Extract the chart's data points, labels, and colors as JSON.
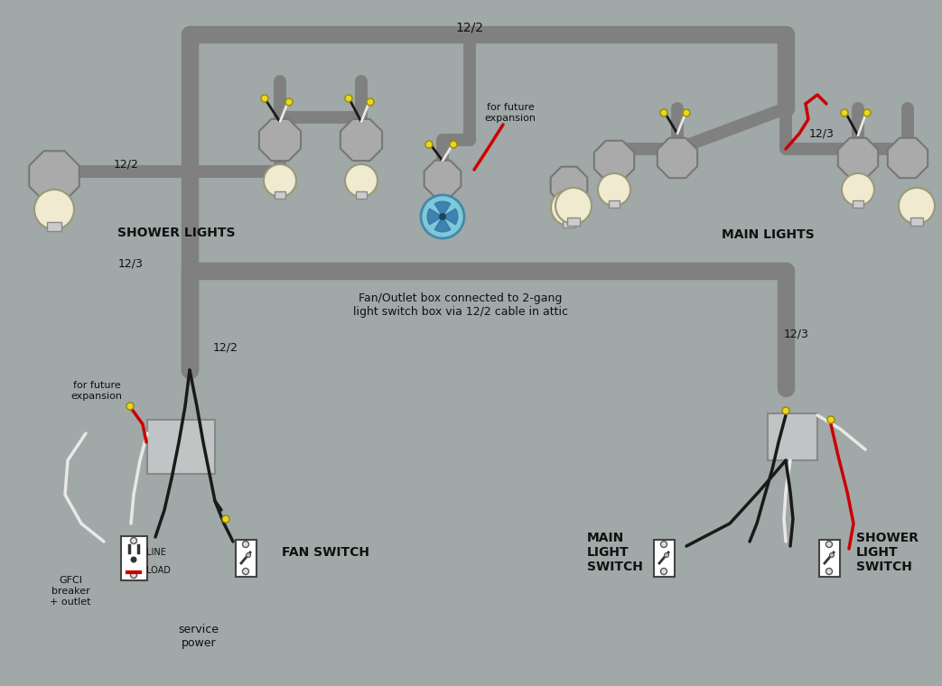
{
  "bg_color": "#a0a8a8",
  "wire_colors": {
    "black": "#1a1a1a",
    "white": "#e8e8e8",
    "red": "#cc0000",
    "gray_conduit": "#808080",
    "yellow_tip": "#e8d820"
  },
  "labels": {
    "cable_top_122": "12/2",
    "shower_lights": "SHOWER LIGHTS",
    "main_lights": "MAIN LIGHTS",
    "fan_switch": "FAN SWITCH",
    "main_light_switch": "MAIN\nLIGHT\nSWITCH",
    "shower_light_switch": "SHOWER\nLIGHT\nSWITCH",
    "gfci": "GFCI\nbreaker\n+ outlet",
    "line_label": "LINE",
    "load_label": "LOAD",
    "service_power": "service\npower",
    "for_future_top": "for future\nexpansion",
    "for_future_bot": "for future\nexpansion",
    "cable_122_shower": "12/2",
    "cable_123_bot": "12/3",
    "cable_122_mid": "12/2",
    "cable_123_right": "12/3",
    "cable_123_main": "12/3",
    "fan_outlet_note": "Fan/Outlet box connected to 2-gang\nlight switch box via 12/2 cable in attic"
  }
}
